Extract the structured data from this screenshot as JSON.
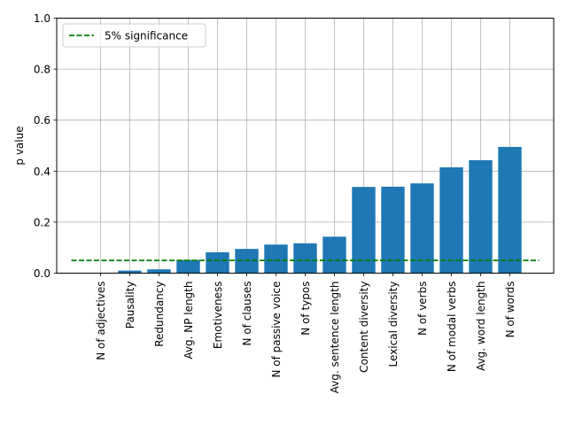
{
  "chart_data": {
    "type": "bar",
    "title": "",
    "xlabel": "",
    "ylabel": "p value",
    "ylim": [
      0,
      1
    ],
    "yticks": [
      0.0,
      0.2,
      0.4,
      0.6,
      0.8,
      1.0
    ],
    "ytick_labels": [
      "0.0",
      "0.2",
      "0.4",
      "0.6",
      "0.8",
      "1.0"
    ],
    "categories": [
      "N of adjectives",
      "Pausality",
      "Redundancy",
      "Avg. NP length",
      "Emotiveness",
      "N of clauses",
      "N of passive voice",
      "N of typos",
      "Avg. sentence length",
      "Content diversity",
      "Lexical diversity",
      "N of verbs",
      "N of modal verbs",
      "Avg. word length",
      "N of words"
    ],
    "values": [
      0.0,
      0.01,
      0.015,
      0.052,
      0.082,
      0.095,
      0.112,
      0.117,
      0.143,
      0.338,
      0.339,
      0.352,
      0.415,
      0.443,
      0.495
    ],
    "bar_color": "#1f77b4",
    "threshold": {
      "value": 0.05,
      "label": "5% significance",
      "color": "#008000",
      "style": "dashed"
    },
    "grid": true,
    "legend_position": "top-left"
  }
}
